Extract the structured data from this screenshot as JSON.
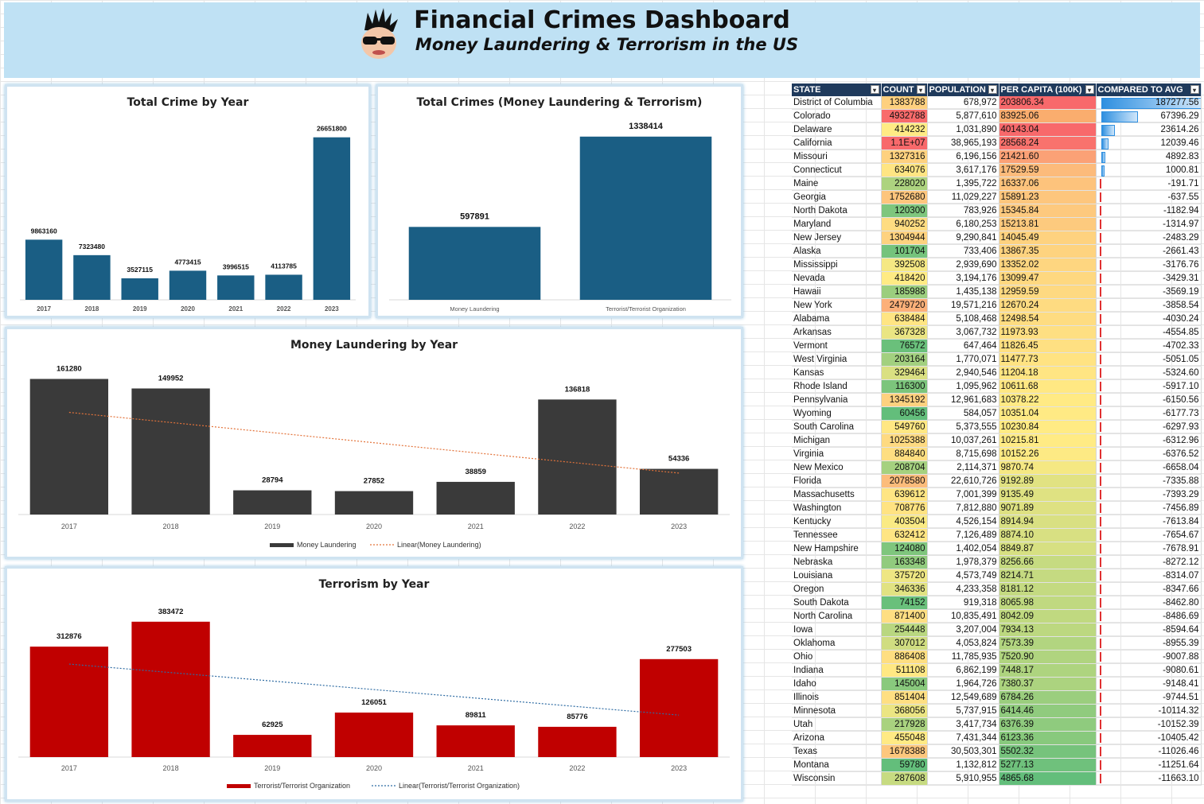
{
  "header": {
    "title": "Financial Crimes Dashboard",
    "subtitle": "Money Laundering & Terrorism in the US"
  },
  "colors": {
    "blue": "#1a5e84",
    "dark": "#3a3a3a",
    "red": "#c00000",
    "ml_trend": "#e3733a",
    "tr_trend": "#2f6ca3"
  },
  "chart_data": [
    {
      "id": "total_by_year",
      "type": "bar",
      "title": "Total Crime by Year",
      "categories": [
        "2017",
        "2018",
        "2019",
        "2020",
        "2021",
        "2022",
        "2023"
      ],
      "values": [
        9863160,
        7323480,
        3527115,
        4773415,
        3996515,
        4113785,
        26651800
      ],
      "ylim": [
        0,
        30000000
      ]
    },
    {
      "id": "total_crimes",
      "type": "bar",
      "title": "Total Crimes (Money Laundering & Terrorism)",
      "categories": [
        "Money Laundering",
        "Terrorist/Terrorist Organization"
      ],
      "values": [
        597891,
        1338414
      ],
      "ylim": [
        0,
        1500000
      ]
    },
    {
      "id": "ml_by_year",
      "type": "bar",
      "title": "Money Laundering by Year",
      "categories": [
        "2017",
        "2018",
        "2019",
        "2020",
        "2021",
        "2022",
        "2023"
      ],
      "values": [
        161280,
        149952,
        28794,
        27852,
        38859,
        136818,
        54336
      ],
      "ylim": [
        0,
        175000
      ],
      "legend": [
        "Money Laundering",
        "Linear(Money Laundering)"
      ]
    },
    {
      "id": "terror_by_year",
      "type": "bar",
      "title": "Terrorism by Year",
      "categories": [
        "2017",
        "2018",
        "2019",
        "2020",
        "2021",
        "2022",
        "2023"
      ],
      "values": [
        312876,
        383472,
        62925,
        126051,
        89811,
        85776,
        277503
      ],
      "ylim": [
        0,
        410000
      ],
      "legend": [
        "Terrorist/Terrorist Organization",
        "Linear(Terrorist/Terrorist Organization)"
      ]
    }
  ],
  "table": {
    "headers": [
      "STATE",
      "COUNT",
      "POPULATION",
      "PER CAPITA (100K)",
      "COMPARED TO AVG"
    ],
    "rows": [
      [
        "District of Columbia",
        "1383788",
        "678,972",
        "203806.34",
        "187277.56"
      ],
      [
        "Colorado",
        "4932788",
        "5,877,610",
        "83925.06",
        "67396.29"
      ],
      [
        "Delaware",
        "414232",
        "1,031,890",
        "40143.04",
        "23614.26"
      ],
      [
        "California",
        "1.1E+07",
        "38,965,193",
        "28568.24",
        "12039.46"
      ],
      [
        "Missouri",
        "1327316",
        "6,196,156",
        "21421.60",
        "4892.83"
      ],
      [
        "Connecticut",
        "634076",
        "3,617,176",
        "17529.59",
        "1000.81"
      ],
      [
        "Maine",
        "228020",
        "1,395,722",
        "16337.06",
        "-191.71"
      ],
      [
        "Georgia",
        "1752680",
        "11,029,227",
        "15891.23",
        "-637.55"
      ],
      [
        "North Dakota",
        "120300",
        "783,926",
        "15345.84",
        "-1182.94"
      ],
      [
        "Maryland",
        "940252",
        "6,180,253",
        "15213.81",
        "-1314.97"
      ],
      [
        "New Jersey",
        "1304944",
        "9,290,841",
        "14045.49",
        "-2483.29"
      ],
      [
        "Alaska",
        "101704",
        "733,406",
        "13867.35",
        "-2661.43"
      ],
      [
        "Mississippi",
        "392508",
        "2,939,690",
        "13352.02",
        "-3176.76"
      ],
      [
        "Nevada",
        "418420",
        "3,194,176",
        "13099.47",
        "-3429.31"
      ],
      [
        "Hawaii",
        "185988",
        "1,435,138",
        "12959.59",
        "-3569.19"
      ],
      [
        "New York",
        "2479720",
        "19,571,216",
        "12670.24",
        "-3858.54"
      ],
      [
        "Alabama",
        "638484",
        "5,108,468",
        "12498.54",
        "-4030.24"
      ],
      [
        "Arkansas",
        "367328",
        "3,067,732",
        "11973.93",
        "-4554.85"
      ],
      [
        "Vermont",
        "76572",
        "647,464",
        "11826.45",
        "-4702.33"
      ],
      [
        "West Virginia",
        "203164",
        "1,770,071",
        "11477.73",
        "-5051.05"
      ],
      [
        "Kansas",
        "329464",
        "2,940,546",
        "11204.18",
        "-5324.60"
      ],
      [
        "Rhode Island",
        "116300",
        "1,095,962",
        "10611.68",
        "-5917.10"
      ],
      [
        "Pennsylvania",
        "1345192",
        "12,961,683",
        "10378.22",
        "-6150.56"
      ],
      [
        "Wyoming",
        "60456",
        "584,057",
        "10351.04",
        "-6177.73"
      ],
      [
        "South Carolina",
        "549760",
        "5,373,555",
        "10230.84",
        "-6297.93"
      ],
      [
        "Michigan",
        "1025388",
        "10,037,261",
        "10215.81",
        "-6312.96"
      ],
      [
        "Virginia",
        "884840",
        "8,715,698",
        "10152.26",
        "-6376.52"
      ],
      [
        "New Mexico",
        "208704",
        "2,114,371",
        "9870.74",
        "-6658.04"
      ],
      [
        "Florida",
        "2078580",
        "22,610,726",
        "9192.89",
        "-7335.88"
      ],
      [
        "Massachusetts",
        "639612",
        "7,001,399",
        "9135.49",
        "-7393.29"
      ],
      [
        "Washington",
        "708776",
        "7,812,880",
        "9071.89",
        "-7456.89"
      ],
      [
        "Kentucky",
        "403504",
        "4,526,154",
        "8914.94",
        "-7613.84"
      ],
      [
        "Tennessee",
        "632412",
        "7,126,489",
        "8874.10",
        "-7654.67"
      ],
      [
        "New Hampshire",
        "124080",
        "1,402,054",
        "8849.87",
        "-7678.91"
      ],
      [
        "Nebraska",
        "163348",
        "1,978,379",
        "8256.66",
        "-8272.12"
      ],
      [
        "Louisiana",
        "375720",
        "4,573,749",
        "8214.71",
        "-8314.07"
      ],
      [
        "Oregon",
        "346336",
        "4,233,358",
        "8181.12",
        "-8347.66"
      ],
      [
        "South Dakota",
        "74152",
        "919,318",
        "8065.98",
        "-8462.80"
      ],
      [
        "North Carolina",
        "871400",
        "10,835,491",
        "8042.09",
        "-8486.69"
      ],
      [
        "Iowa",
        "254448",
        "3,207,004",
        "7934.13",
        "-8594.64"
      ],
      [
        "Oklahoma",
        "307012",
        "4,053,824",
        "7573.39",
        "-8955.39"
      ],
      [
        "Ohio",
        "886408",
        "11,785,935",
        "7520.90",
        "-9007.88"
      ],
      [
        "Indiana",
        "511108",
        "6,862,199",
        "7448.17",
        "-9080.61"
      ],
      [
        "Idaho",
        "145004",
        "1,964,726",
        "7380.37",
        "-9148.41"
      ],
      [
        "Illinois",
        "851404",
        "12,549,689",
        "6784.26",
        "-9744.51"
      ],
      [
        "Minnesota",
        "368056",
        "5,737,915",
        "6414.46",
        "-10114.32"
      ],
      [
        "Utah",
        "217928",
        "3,417,734",
        "6376.39",
        "-10152.39"
      ],
      [
        "Arizona",
        "455048",
        "7,431,344",
        "6123.36",
        "-10405.42"
      ],
      [
        "Texas",
        "1678388",
        "30,503,301",
        "5502.32",
        "-11026.46"
      ],
      [
        "Montana",
        "59780",
        "1,132,812",
        "5277.13",
        "-11251.64"
      ],
      [
        "Wisconsin",
        "287608",
        "5,910,955",
        "4865.68",
        "-11663.10"
      ]
    ]
  }
}
